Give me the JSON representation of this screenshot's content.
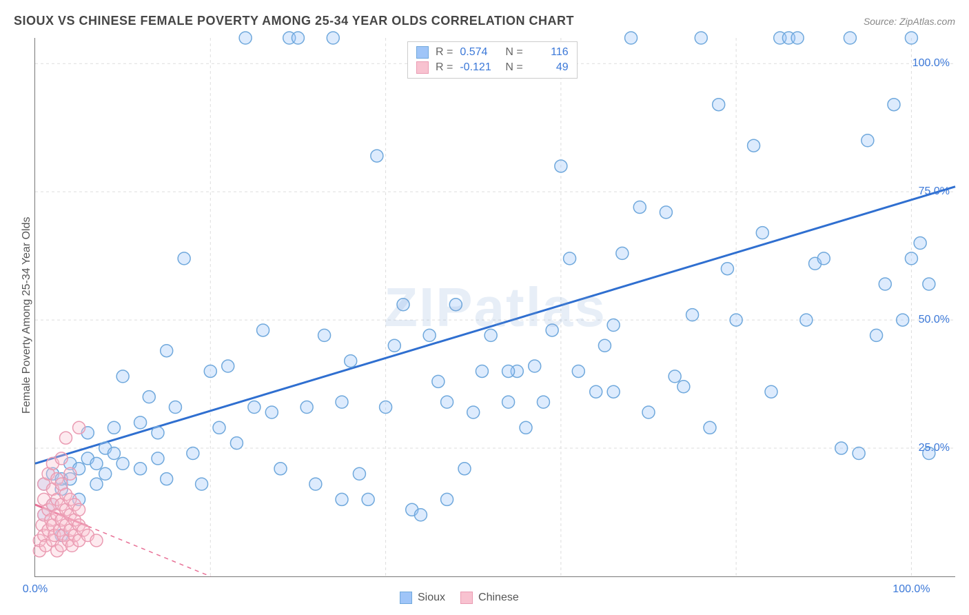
{
  "title": "SIOUX VS CHINESE FEMALE POVERTY AMONG 25-34 YEAR OLDS CORRELATION CHART",
  "source_prefix": "Source: ",
  "source_name": "ZipAtlas.com",
  "y_axis_label": "Female Poverty Among 25-34 Year Olds",
  "watermark": "ZIPatlas",
  "chart": {
    "type": "scatter",
    "xlim": [
      0,
      105
    ],
    "ylim": [
      0,
      105
    ],
    "x_ticks": [
      0,
      100
    ],
    "x_tick_labels": [
      "0.0%",
      "100.0%"
    ],
    "y_ticks": [
      25,
      50,
      75,
      100
    ],
    "y_tick_labels": [
      "25.0%",
      "50.0%",
      "75.0%",
      "100.0%"
    ],
    "x_grid_at": [
      20,
      40,
      60,
      80,
      100
    ],
    "y_grid_at": [
      25,
      50,
      75,
      100
    ],
    "grid_color": "#dddddd",
    "marker_radius": 9,
    "background_color": "#ffffff",
    "tick_label_color": "#3b78d8",
    "series": [
      {
        "name": "Sioux",
        "fill": "#9fc5f8",
        "stroke": "#6fa8dc",
        "trend": {
          "x1": 0,
          "y1": 22,
          "x2": 105,
          "y2": 76,
          "color": "#2f6fd0",
          "dash_from_x": 105
        },
        "points": [
          [
            1,
            12
          ],
          [
            1,
            18
          ],
          [
            2,
            14
          ],
          [
            2,
            20
          ],
          [
            3,
            17
          ],
          [
            3,
            19
          ],
          [
            3,
            8
          ],
          [
            4,
            22
          ],
          [
            4,
            19
          ],
          [
            5,
            21
          ],
          [
            5,
            15
          ],
          [
            6,
            23
          ],
          [
            6,
            28
          ],
          [
            7,
            22
          ],
          [
            7,
            18
          ],
          [
            8,
            25
          ],
          [
            8,
            20
          ],
          [
            9,
            24
          ],
          [
            9,
            29
          ],
          [
            10,
            22
          ],
          [
            10,
            39
          ],
          [
            12,
            21
          ],
          [
            12,
            30
          ],
          [
            13,
            35
          ],
          [
            14,
            23
          ],
          [
            14,
            28
          ],
          [
            15,
            44
          ],
          [
            15,
            19
          ],
          [
            16,
            33
          ],
          [
            17,
            62
          ],
          [
            18,
            24
          ],
          [
            19,
            18
          ],
          [
            20,
            40
          ],
          [
            21,
            29
          ],
          [
            22,
            41
          ],
          [
            23,
            26
          ],
          [
            24,
            105
          ],
          [
            25,
            33
          ],
          [
            26,
            48
          ],
          [
            27,
            32
          ],
          [
            28,
            21
          ],
          [
            29,
            105
          ],
          [
            30,
            105
          ],
          [
            31,
            33
          ],
          [
            32,
            18
          ],
          [
            33,
            47
          ],
          [
            34,
            105
          ],
          [
            35,
            34
          ],
          [
            36,
            42
          ],
          [
            37,
            20
          ],
          [
            38,
            15
          ],
          [
            39,
            82
          ],
          [
            40,
            33
          ],
          [
            41,
            45
          ],
          [
            42,
            53
          ],
          [
            43,
            13
          ],
          [
            44,
            12
          ],
          [
            45,
            47
          ],
          [
            46,
            38
          ],
          [
            47,
            34
          ],
          [
            48,
            53
          ],
          [
            49,
            21
          ],
          [
            50,
            32
          ],
          [
            51,
            40
          ],
          [
            52,
            47
          ],
          [
            54,
            34
          ],
          [
            55,
            40
          ],
          [
            56,
            29
          ],
          [
            57,
            41
          ],
          [
            58,
            34
          ],
          [
            59,
            48
          ],
          [
            60,
            80
          ],
          [
            61,
            62
          ],
          [
            62,
            40
          ],
          [
            64,
            36
          ],
          [
            65,
            45
          ],
          [
            66,
            49
          ],
          [
            67,
            63
          ],
          [
            68,
            105
          ],
          [
            69,
            72
          ],
          [
            70,
            32
          ],
          [
            72,
            71
          ],
          [
            73,
            39
          ],
          [
            74,
            37
          ],
          [
            75,
            51
          ],
          [
            76,
            105
          ],
          [
            77,
            29
          ],
          [
            78,
            92
          ],
          [
            79,
            60
          ],
          [
            80,
            50
          ],
          [
            82,
            84
          ],
          [
            83,
            67
          ],
          [
            84,
            36
          ],
          [
            85,
            105
          ],
          [
            86,
            105
          ],
          [
            87,
            105
          ],
          [
            88,
            50
          ],
          [
            89,
            61
          ],
          [
            90,
            62
          ],
          [
            92,
            25
          ],
          [
            93,
            105
          ],
          [
            94,
            24
          ],
          [
            95,
            85
          ],
          [
            96,
            47
          ],
          [
            97,
            57
          ],
          [
            98,
            92
          ],
          [
            99,
            50
          ],
          [
            100,
            105
          ],
          [
            100,
            62
          ],
          [
            101,
            65
          ],
          [
            102,
            57
          ],
          [
            102,
            24
          ],
          [
            66,
            36
          ],
          [
            54,
            40
          ],
          [
            47,
            15
          ],
          [
            35,
            15
          ]
        ]
      },
      {
        "name": "Chinese",
        "fill": "#f8c2d0",
        "stroke": "#ea9bb2",
        "trend": {
          "x1": 0,
          "y1": 14,
          "x2": 20,
          "y2": 0,
          "color": "#e87096",
          "dash_from_x": 6
        },
        "points": [
          [
            0.5,
            5
          ],
          [
            0.5,
            7
          ],
          [
            0.8,
            10
          ],
          [
            1,
            8
          ],
          [
            1,
            12
          ],
          [
            1,
            15
          ],
          [
            1,
            18
          ],
          [
            1.2,
            6
          ],
          [
            1.5,
            9
          ],
          [
            1.5,
            13
          ],
          [
            1.5,
            20
          ],
          [
            1.8,
            11
          ],
          [
            2,
            7
          ],
          [
            2,
            10
          ],
          [
            2,
            14
          ],
          [
            2,
            17
          ],
          [
            2,
            22
          ],
          [
            2.2,
            8
          ],
          [
            2.5,
            5
          ],
          [
            2.5,
            12
          ],
          [
            2.5,
            15
          ],
          [
            2.5,
            19
          ],
          [
            2.8,
            9
          ],
          [
            3,
            6
          ],
          [
            3,
            11
          ],
          [
            3,
            14
          ],
          [
            3,
            18
          ],
          [
            3,
            23
          ],
          [
            3.2,
            8
          ],
          [
            3.5,
            10
          ],
          [
            3.5,
            13
          ],
          [
            3.5,
            16
          ],
          [
            3.5,
            27
          ],
          [
            3.8,
            7
          ],
          [
            4,
            9
          ],
          [
            4,
            12
          ],
          [
            4,
            15
          ],
          [
            4,
            20
          ],
          [
            4.2,
            6
          ],
          [
            4.5,
            8
          ],
          [
            4.5,
            11
          ],
          [
            4.5,
            14
          ],
          [
            5,
            7
          ],
          [
            5,
            10
          ],
          [
            5,
            13
          ],
          [
            5,
            29
          ],
          [
            5.5,
            9
          ],
          [
            6,
            8
          ],
          [
            7,
            7
          ]
        ]
      }
    ]
  },
  "stat_legend": {
    "rows": [
      {
        "series": "Sioux",
        "r_label": "R =",
        "r": "0.574",
        "n_label": "N =",
        "n": "116"
      },
      {
        "series": "Chinese",
        "r_label": "R =",
        "r": "-0.121",
        "n_label": "N =",
        "n": "49"
      }
    ],
    "label_color": "#666666",
    "value_color": "#3b78d8"
  },
  "bottom_legend": {
    "items": [
      {
        "label": "Sioux",
        "series": "Sioux"
      },
      {
        "label": "Chinese",
        "series": "Chinese"
      }
    ]
  }
}
